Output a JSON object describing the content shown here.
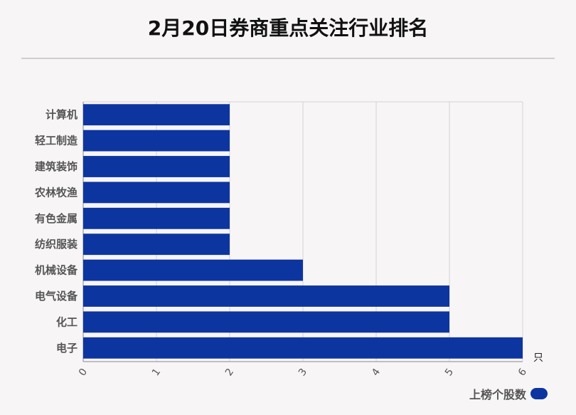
{
  "title": "2月20日券商重点关注行业排名",
  "colors": {
    "bar": "#0d35a0",
    "grid": "#d3d3d3",
    "label": "#555555"
  },
  "chart_data": {
    "type": "bar",
    "orientation": "horizontal",
    "title": "2月20日券商重点关注行业排名",
    "categories": [
      "计算机",
      "轻工制造",
      "建筑装饰",
      "农林牧渔",
      "有色金属",
      "纺织服装",
      "机械设备",
      "电气设备",
      "化工",
      "电子"
    ],
    "series": [
      {
        "name": "上榜个股数",
        "values": [
          2,
          2,
          2,
          2,
          2,
          2,
          3,
          5,
          5,
          6
        ]
      }
    ],
    "xlim": [
      0,
      6
    ],
    "xticks": [
      "0",
      "1",
      "2",
      "3",
      "4",
      "5",
      "6"
    ],
    "xunit": "只",
    "grid": true,
    "legend": "bottom-right"
  }
}
